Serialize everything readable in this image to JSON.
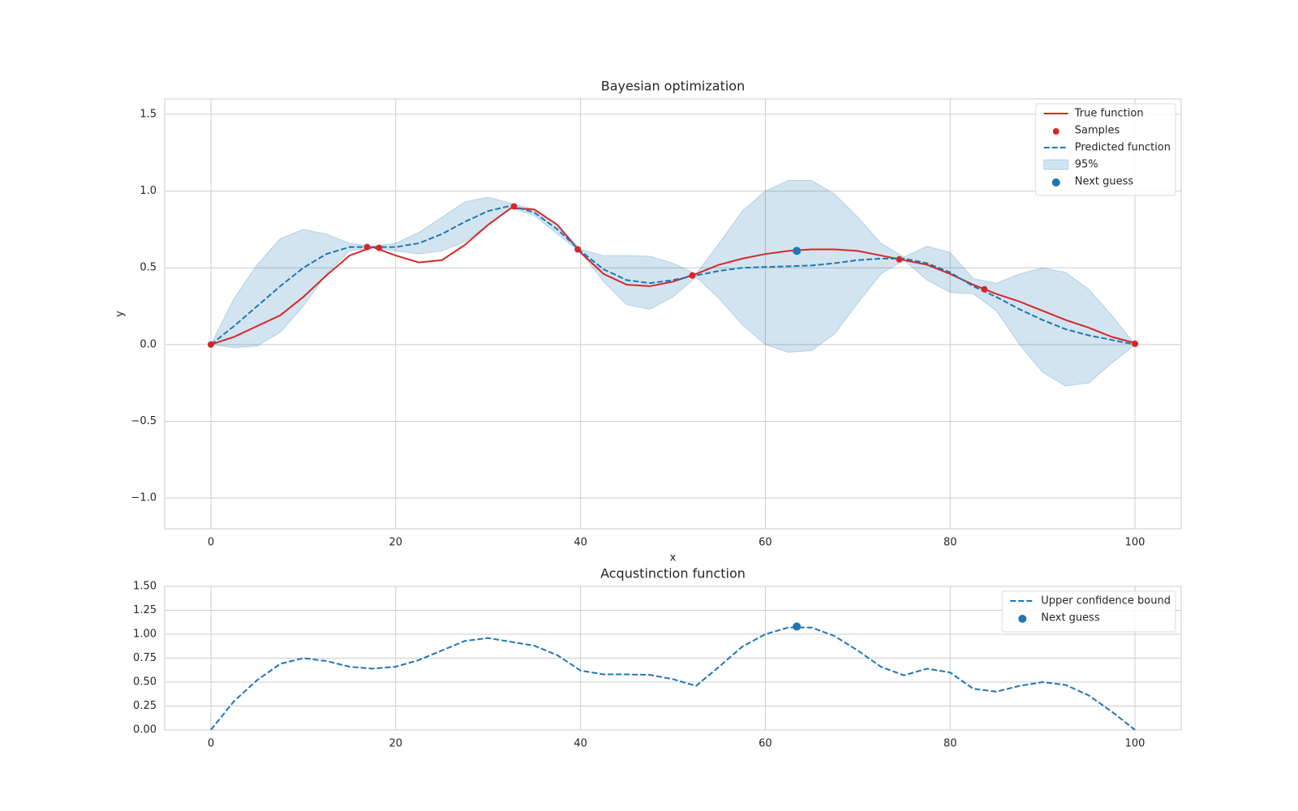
{
  "chart_data": [
    {
      "type": "line",
      "title": "Bayesian optimization",
      "xlabel": "x",
      "ylabel": "y",
      "xlim": [
        -5,
        105
      ],
      "ylim": [
        -1.2,
        1.6
      ],
      "xticks": [
        0,
        20,
        40,
        60,
        80,
        100
      ],
      "yticks": [
        {
          "value": -1.0,
          "label": "−1.0"
        },
        {
          "value": -0.5,
          "label": "−0.5"
        },
        {
          "value": 0,
          "label": "0.0"
        },
        0.5,
        {
          "value": 1.0,
          "label": "1.0"
        },
        1.5
      ],
      "grid": true,
      "legend": "upper right",
      "x": [
        0,
        2.5,
        5,
        7.5,
        10,
        12.5,
        15,
        17.5,
        20,
        22.5,
        25,
        27.5,
        30,
        32.5,
        35,
        37.5,
        40,
        42.5,
        45,
        47.5,
        50,
        52.5,
        55,
        57.5,
        60,
        62.5,
        65,
        67.5,
        70,
        72.5,
        75,
        77.5,
        80,
        82.5,
        85,
        87.5,
        90,
        92.5,
        95,
        97.5,
        100
      ],
      "series": [
        {
          "name": "True function",
          "kind": "line",
          "linestyle": "solid",
          "color": "#d62728",
          "values": [
            0,
            0.05,
            0.12,
            0.19,
            0.31,
            0.45,
            0.58,
            0.635,
            0.58,
            0.535,
            0.55,
            0.65,
            0.78,
            0.89,
            0.88,
            0.78,
            0.6,
            0.46,
            0.39,
            0.38,
            0.41,
            0.46,
            0.52,
            0.56,
            0.59,
            0.61,
            0.62,
            0.62,
            0.61,
            0.58,
            0.55,
            0.52,
            0.46,
            0.39,
            0.33,
            0.28,
            0.22,
            0.16,
            0.11,
            0.05,
            0.01
          ]
        },
        {
          "name": "Samples",
          "kind": "scatter",
          "color": "#d62728",
          "x": [
            0,
            16.9,
            18.2,
            32.8,
            39.7,
            52.1,
            74.5,
            83.7,
            100
          ],
          "values": [
            0,
            0.635,
            0.63,
            0.9,
            0.62,
            0.45,
            0.555,
            0.36,
            0.005
          ]
        },
        {
          "name": "Predicted function",
          "kind": "line",
          "linestyle": "dashed",
          "color": "#1f77b4",
          "values": [
            0,
            0.12,
            0.25,
            0.38,
            0.5,
            0.59,
            0.635,
            0.635,
            0.635,
            0.66,
            0.72,
            0.8,
            0.87,
            0.905,
            0.86,
            0.75,
            0.61,
            0.49,
            0.42,
            0.4,
            0.42,
            0.45,
            0.48,
            0.5,
            0.505,
            0.51,
            0.515,
            0.53,
            0.55,
            0.56,
            0.56,
            0.53,
            0.47,
            0.38,
            0.31,
            0.23,
            0.16,
            0.1,
            0.06,
            0.03,
            0
          ]
        },
        {
          "name": "95%",
          "kind": "band",
          "color": "#1f77b4",
          "lower": [
            0,
            -0.02,
            -0.01,
            0.08,
            0.25,
            0.46,
            0.61,
            0.63,
            0.61,
            0.59,
            0.61,
            0.67,
            0.78,
            0.89,
            0.84,
            0.72,
            0.6,
            0.41,
            0.26,
            0.23,
            0.31,
            0.44,
            0.3,
            0.13,
            0,
            -0.05,
            -0.04,
            0.07,
            0.27,
            0.46,
            0.55,
            0.42,
            0.34,
            0.33,
            0.22,
            0,
            -0.18,
            -0.27,
            -0.25,
            -0.12,
            0
          ],
          "upper": [
            0,
            0.3,
            0.52,
            0.69,
            0.75,
            0.72,
            0.66,
            0.64,
            0.66,
            0.73,
            0.83,
            0.93,
            0.96,
            0.92,
            0.88,
            0.78,
            0.62,
            0.58,
            0.58,
            0.575,
            0.53,
            0.46,
            0.66,
            0.87,
            1.0,
            1.07,
            1.07,
            0.98,
            0.83,
            0.66,
            0.57,
            0.64,
            0.6,
            0.43,
            0.4,
            0.46,
            0.5,
            0.47,
            0.36,
            0.19,
            0
          ]
        },
        {
          "name": "Next guess",
          "kind": "scatter",
          "color": "#1f77b4",
          "x": [
            63.4
          ],
          "values": [
            0.61
          ]
        }
      ]
    },
    {
      "type": "line",
      "title": "Acqustinction function",
      "xlim": [
        -5,
        105
      ],
      "ylim": [
        0,
        1.5
      ],
      "xticks": [
        0,
        20,
        40,
        60,
        80,
        100
      ],
      "yticks": [
        {
          "value": 0,
          "label": "0.00"
        },
        0.25,
        {
          "value": 0.5,
          "label": "0.50"
        },
        0.75,
        {
          "value": 1.0,
          "label": "1.00"
        },
        1.25,
        {
          "value": 1.5,
          "label": "1.50"
        }
      ],
      "grid": true,
      "legend": "upper right",
      "x": [
        0,
        2.5,
        5,
        7.5,
        10,
        12.5,
        15,
        17.5,
        20,
        22.5,
        25,
        27.5,
        30,
        32.5,
        35,
        37.5,
        40,
        42.5,
        45,
        47.5,
        50,
        52.5,
        55,
        57.5,
        60,
        62.5,
        65,
        67.5,
        70,
        72.5,
        75,
        77.5,
        80,
        82.5,
        85,
        87.5,
        90,
        92.5,
        95,
        97.5,
        100
      ],
      "series": [
        {
          "name": "Upper confidence bound",
          "kind": "line",
          "linestyle": "dashed",
          "color": "#1f77b4",
          "values": [
            0,
            0.3,
            0.52,
            0.69,
            0.75,
            0.72,
            0.66,
            0.64,
            0.66,
            0.73,
            0.83,
            0.93,
            0.96,
            0.92,
            0.88,
            0.78,
            0.62,
            0.58,
            0.58,
            0.575,
            0.53,
            0.46,
            0.66,
            0.87,
            1.0,
            1.07,
            1.07,
            0.98,
            0.83,
            0.66,
            0.57,
            0.64,
            0.6,
            0.43,
            0.4,
            0.46,
            0.5,
            0.47,
            0.36,
            0.19,
            0
          ]
        },
        {
          "name": "Next guess",
          "kind": "scatter",
          "color": "#1f77b4",
          "x": [
            63.4
          ],
          "values": [
            1.08
          ]
        }
      ]
    }
  ]
}
